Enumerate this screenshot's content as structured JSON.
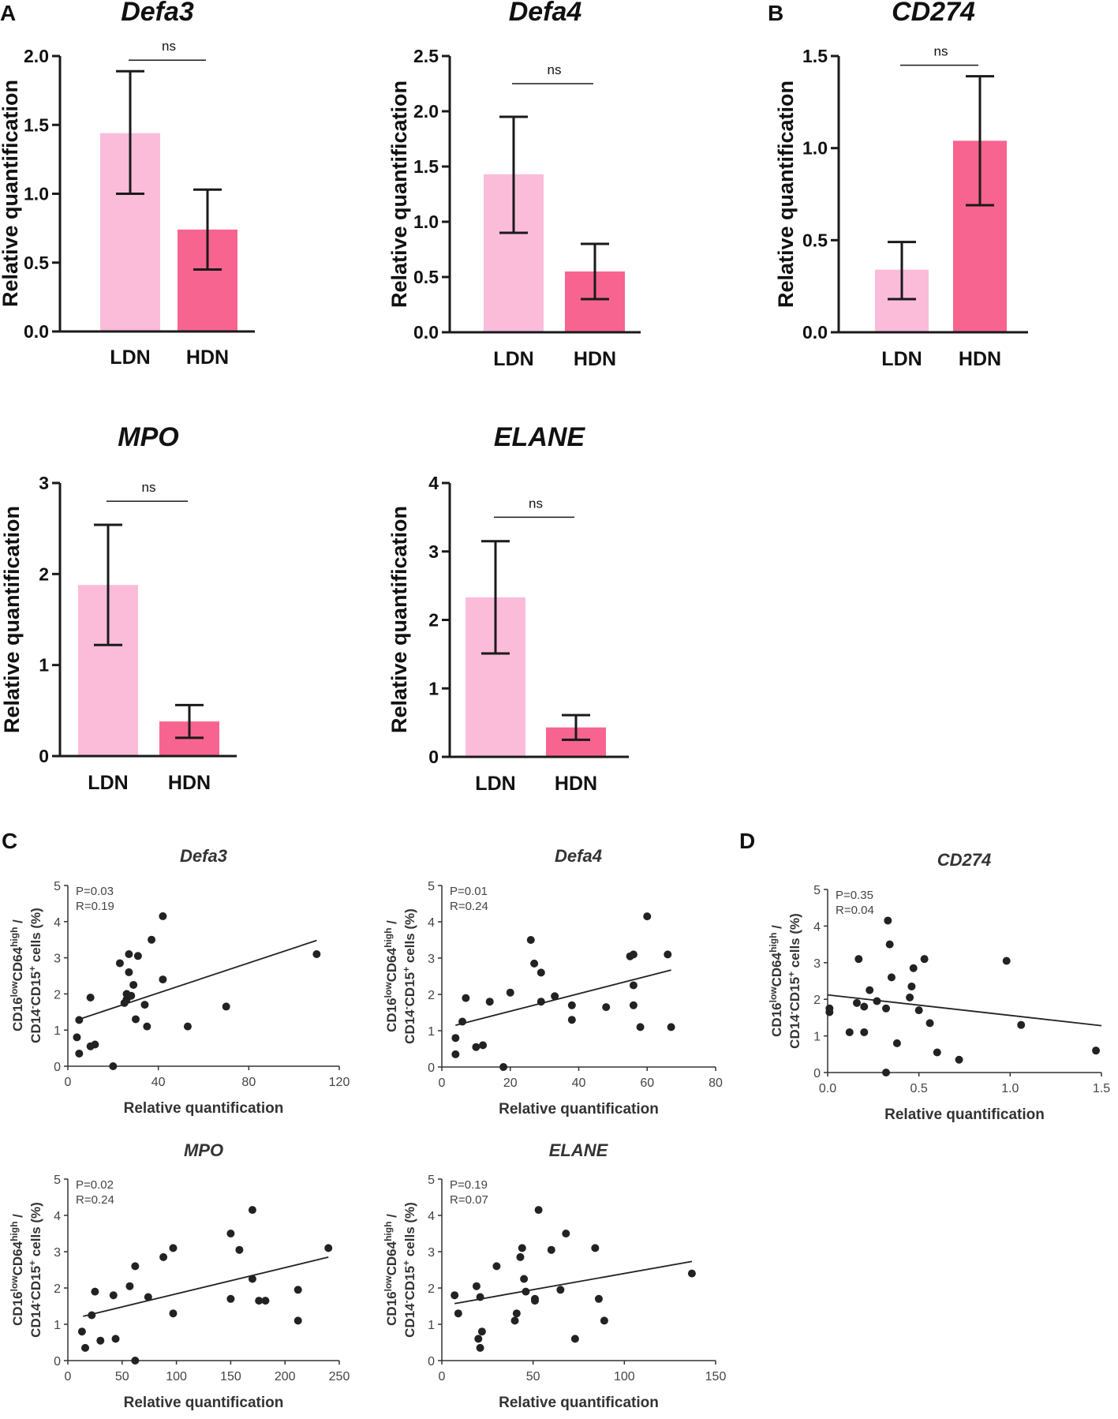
{
  "panel_labels": [
    "A",
    "B",
    "C",
    "D"
  ],
  "colors": {
    "ldn": "#fbbcd9",
    "hdn": "#f7648f",
    "axis": "#1a1a1a",
    "point": "#222222"
  },
  "chart_data": [
    {
      "id": "defa3-bar",
      "type": "bar",
      "title": "Defa3",
      "ylabel": "Relative quantification",
      "xlabel": "",
      "categories": [
        "LDN",
        "HDN"
      ],
      "values": [
        1.44,
        0.74
      ],
      "error_low": [
        1.0,
        0.45
      ],
      "error_high": [
        1.89,
        1.03
      ],
      "ylim": [
        0,
        2.0
      ],
      "yticks": [
        "0.0",
        "0.5",
        "1.0",
        "1.5",
        "2.0"
      ],
      "significance": "ns",
      "sig_y": 1.97
    },
    {
      "id": "defa4-bar",
      "type": "bar",
      "title": "Defa4",
      "ylabel": "Relative quantification",
      "xlabel": "",
      "categories": [
        "LDN",
        "HDN"
      ],
      "values": [
        1.43,
        0.55
      ],
      "error_low": [
        0.9,
        0.3
      ],
      "error_high": [
        1.95,
        0.8
      ],
      "ylim": [
        0,
        2.5
      ],
      "yticks": [
        "0.0",
        "0.5",
        "1.0",
        "1.5",
        "2.0",
        "2.5"
      ],
      "significance": "ns",
      "sig_y": 2.25
    },
    {
      "id": "cd274-bar",
      "type": "bar",
      "title": "CD274",
      "ylabel": "Relative quantification",
      "xlabel": "",
      "categories": [
        "LDN",
        "HDN"
      ],
      "values": [
        0.34,
        1.04
      ],
      "error_low": [
        0.18,
        0.69
      ],
      "error_high": [
        0.49,
        1.39
      ],
      "ylim": [
        0,
        1.5
      ],
      "yticks": [
        "0.0",
        "0.5",
        "1.0",
        "1.5"
      ],
      "significance": "ns",
      "sig_y": 1.45
    },
    {
      "id": "mpo-bar",
      "type": "bar",
      "title": "MPO",
      "ylabel": "Relative quantification",
      "xlabel": "",
      "categories": [
        "LDN",
        "HDN"
      ],
      "values": [
        1.88,
        0.38
      ],
      "error_low": [
        1.22,
        0.2
      ],
      "error_high": [
        2.54,
        0.56
      ],
      "ylim": [
        0,
        3
      ],
      "yticks": [
        "0",
        "1",
        "2",
        "3"
      ],
      "significance": "ns",
      "sig_y": 2.8
    },
    {
      "id": "elane-bar",
      "type": "bar",
      "title": "ELANE",
      "ylabel": "Relative quantification",
      "xlabel": "",
      "categories": [
        "LDN",
        "HDN"
      ],
      "values": [
        2.33,
        0.43
      ],
      "error_low": [
        1.51,
        0.25
      ],
      "error_high": [
        3.15,
        0.61
      ],
      "ylim": [
        0,
        4
      ],
      "yticks": [
        "0",
        "1",
        "2",
        "3",
        "4"
      ],
      "significance": "ns",
      "sig_y": 3.5
    },
    {
      "id": "defa3-scatter",
      "type": "scatter",
      "title": "Defa3",
      "xlabel": "Relative quantification",
      "ylabel_line1": "CD16lowCD64high /",
      "ylabel_line2": "CD14-CD15+ cells (%)",
      "xlim": [
        0,
        120
      ],
      "ylim": [
        0,
        5
      ],
      "xticks": [
        "0",
        "40",
        "80",
        "120"
      ],
      "yticks": [
        "0",
        "1",
        "2",
        "3",
        "4",
        "5"
      ],
      "p_text": "P=0.03",
      "r_text": "R=0.19",
      "fit": [
        [
          5,
          1.3
        ],
        [
          110,
          3.48
        ]
      ],
      "points": [
        [
          4,
          0.8
        ],
        [
          5,
          0.35
        ],
        [
          5,
          1.28
        ],
        [
          10,
          1.9
        ],
        [
          10,
          0.55
        ],
        [
          12,
          0.6
        ],
        [
          20,
          0
        ],
        [
          23,
          2.85
        ],
        [
          25,
          1.75
        ],
        [
          26,
          2.0
        ],
        [
          26,
          1.85
        ],
        [
          27,
          3.1
        ],
        [
          27,
          2.6
        ],
        [
          28,
          1.95
        ],
        [
          29,
          2.25
        ],
        [
          30,
          1.3
        ],
        [
          31,
          3.05
        ],
        [
          34,
          1.7
        ],
        [
          35,
          1.1
        ],
        [
          37,
          3.5
        ],
        [
          42,
          4.15
        ],
        [
          42,
          2.4
        ],
        [
          53,
          1.1
        ],
        [
          70,
          1.65
        ],
        [
          110,
          3.1
        ]
      ]
    },
    {
      "id": "defa4-scatter",
      "type": "scatter",
      "title": "Defa4",
      "xlabel": "Relative quantification",
      "ylabel_line1": "CD16lowCD64high /",
      "ylabel_line2": "CD14-CD15+ cells (%)",
      "xlim": [
        0,
        80
      ],
      "ylim": [
        0,
        5
      ],
      "xticks": [
        "0",
        "20",
        "40",
        "60",
        "80"
      ],
      "yticks": [
        "0",
        "1",
        "2",
        "3",
        "4",
        "5"
      ],
      "p_text": "P=0.01",
      "r_text": "R=0.24",
      "fit": [
        [
          4,
          1.15
        ],
        [
          67,
          2.67
        ]
      ],
      "points": [
        [
          4,
          0.35
        ],
        [
          4,
          0.8
        ],
        [
          6,
          1.25
        ],
        [
          7,
          1.9
        ],
        [
          10,
          0.55
        ],
        [
          12,
          0.6
        ],
        [
          14,
          1.8
        ],
        [
          18,
          0
        ],
        [
          20,
          2.05
        ],
        [
          26,
          3.5
        ],
        [
          27,
          2.85
        ],
        [
          29,
          2.6
        ],
        [
          29,
          1.8
        ],
        [
          33,
          1.95
        ],
        [
          38,
          1.7
        ],
        [
          38,
          1.3
        ],
        [
          48,
          1.65
        ],
        [
          55,
          3.05
        ],
        [
          56,
          3.1
        ],
        [
          56,
          2.25
        ],
        [
          56,
          1.7
        ],
        [
          58,
          1.1
        ],
        [
          60,
          4.15
        ],
        [
          66,
          3.1
        ],
        [
          67,
          1.1
        ]
      ]
    },
    {
      "id": "cd274-scatter",
      "type": "scatter",
      "title": "CD274",
      "xlabel": "Relative quantification",
      "ylabel_line1": "CD16lowCD64high /",
      "ylabel_line2": "CD14-CD15+ cells (%)",
      "xlim": [
        0,
        1.5
      ],
      "ylim": [
        0,
        5
      ],
      "xticks": [
        "0.0",
        "0.5",
        "1.0",
        "1.5"
      ],
      "yticks": [
        "0",
        "1",
        "2",
        "3",
        "4",
        "5"
      ],
      "p_text": "P=0.35",
      "r_text": "R=0.04",
      "fit": [
        [
          0,
          2.12
        ],
        [
          1.5,
          1.28
        ]
      ],
      "points": [
        [
          0.01,
          1.75
        ],
        [
          0.01,
          1.65
        ],
        [
          0.12,
          1.1
        ],
        [
          0.16,
          1.9
        ],
        [
          0.17,
          3.1
        ],
        [
          0.2,
          1.8
        ],
        [
          0.2,
          1.1
        ],
        [
          0.23,
          2.25
        ],
        [
          0.27,
          1.95
        ],
        [
          0.32,
          1.75
        ],
        [
          0.32,
          0
        ],
        [
          0.33,
          4.15
        ],
        [
          0.34,
          3.5
        ],
        [
          0.35,
          2.6
        ],
        [
          0.38,
          0.8
        ],
        [
          0.45,
          2.05
        ],
        [
          0.46,
          2.35
        ],
        [
          0.47,
          2.85
        ],
        [
          0.5,
          1.7
        ],
        [
          0.53,
          3.1
        ],
        [
          0.56,
          1.35
        ],
        [
          0.6,
          0.55
        ],
        [
          0.72,
          0.35
        ],
        [
          0.98,
          3.05
        ],
        [
          1.06,
          1.3
        ],
        [
          1.47,
          0.6
        ]
      ]
    },
    {
      "id": "mpo-scatter",
      "type": "scatter",
      "title": "MPO",
      "xlabel": "Relative quantification",
      "ylabel_line1": "CD16lowCD64high /",
      "ylabel_line2": "CD14-CD15+ cells (%)",
      "xlim": [
        0,
        250
      ],
      "ylim": [
        0,
        5
      ],
      "xticks": [
        "0",
        "50",
        "100",
        "150",
        "200",
        "250"
      ],
      "yticks": [
        "0",
        "1",
        "2",
        "3",
        "4",
        "5"
      ],
      "p_text": "P=0.02",
      "r_text": "R=0.24",
      "fit": [
        [
          14,
          1.22
        ],
        [
          240,
          2.85
        ]
      ],
      "points": [
        [
          13,
          0.8
        ],
        [
          16,
          0.35
        ],
        [
          22,
          1.25
        ],
        [
          25,
          1.9
        ],
        [
          30,
          0.55
        ],
        [
          42,
          1.8
        ],
        [
          44,
          0.6
        ],
        [
          57,
          2.05
        ],
        [
          62,
          2.6
        ],
        [
          62,
          0
        ],
        [
          74,
          1.75
        ],
        [
          88,
          2.85
        ],
        [
          97,
          3.1
        ],
        [
          97,
          1.3
        ],
        [
          150,
          3.5
        ],
        [
          150,
          1.7
        ],
        [
          158,
          3.05
        ],
        [
          170,
          2.25
        ],
        [
          170,
          4.15
        ],
        [
          176,
          1.65
        ],
        [
          182,
          1.65
        ],
        [
          212,
          1.95
        ],
        [
          212,
          1.1
        ],
        [
          240,
          3.1
        ]
      ]
    },
    {
      "id": "elane-scatter",
      "type": "scatter",
      "title": "ELANE",
      "xlabel": "Relative quantification",
      "ylabel_line1": "CD16lowCD64high /",
      "ylabel_line2": "CD14-CD15+ cells (%)",
      "xlim": [
        0,
        150
      ],
      "ylim": [
        0,
        5
      ],
      "xticks": [
        "0",
        "50",
        "100",
        "150"
      ],
      "yticks": [
        "0",
        "1",
        "2",
        "3",
        "4",
        "5"
      ],
      "p_text": "P=0.19",
      "r_text": "R=0.07",
      "fit": [
        [
          7,
          1.57
        ],
        [
          137,
          2.73
        ]
      ],
      "points": [
        [
          7,
          1.8
        ],
        [
          9,
          1.3
        ],
        [
          19,
          2.05
        ],
        [
          20,
          0.6
        ],
        [
          21,
          0.35
        ],
        [
          21,
          1.75
        ],
        [
          22,
          0.8
        ],
        [
          30,
          2.6
        ],
        [
          40,
          1.1
        ],
        [
          41,
          1.3
        ],
        [
          43,
          2.85
        ],
        [
          44,
          3.1
        ],
        [
          45,
          2.25
        ],
        [
          46,
          1.9
        ],
        [
          51,
          1.7
        ],
        [
          51,
          1.65
        ],
        [
          53,
          4.15
        ],
        [
          60,
          3.05
        ],
        [
          65,
          1.95
        ],
        [
          68,
          3.5
        ],
        [
          73,
          0.6
        ],
        [
          84,
          3.1
        ],
        [
          86,
          1.7
        ],
        [
          89,
          1.1
        ],
        [
          137,
          2.4
        ]
      ]
    }
  ]
}
